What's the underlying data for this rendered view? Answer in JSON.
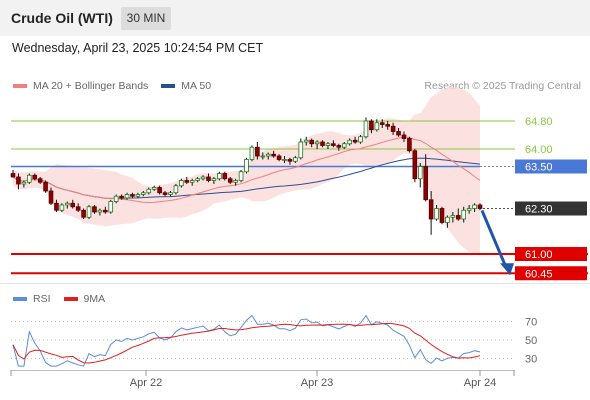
{
  "header": {
    "title": "Crude Oil (WTI)",
    "timeframe": "30 MIN",
    "timestamp": "Wednesday, April 23, 2025 10:24:54 PM CET"
  },
  "legend": {
    "ma20_label": "MA 20 + Bollinger Bands",
    "ma20_color": "#f08080",
    "ma50_label": "MA 50",
    "ma50_color": "#2a4f8f",
    "credit": "Research © 2025 Trading Central"
  },
  "rsi_legend": {
    "rsi_label": "RSI",
    "rsi_color": "#5b8dd9",
    "ma9_label": "9MA",
    "ma9_color": "#e02020"
  },
  "chart_data": [
    {
      "type": "candlestick",
      "title": "",
      "ylim": [
        60.2,
        65.4
      ],
      "x_tick_labels": [
        "Apr 22",
        "Apr 23",
        "Apr 24"
      ],
      "levels": [
        {
          "value": 64.8,
          "label": "64.80",
          "color": "#8cc63f",
          "style": "line"
        },
        {
          "value": 64.0,
          "label": "64.00",
          "color": "#8cc63f",
          "style": "line"
        },
        {
          "value": 63.5,
          "label": "63.50",
          "color": "#4a78d6",
          "style": "tag"
        },
        {
          "value": 62.3,
          "label": "62.30",
          "color": "#333333",
          "style": "tag"
        },
        {
          "value": 61.0,
          "label": "61.00",
          "color": "#e00000",
          "style": "tag"
        },
        {
          "value": 60.45,
          "label": "60.45",
          "color": "#e00000",
          "style": "tag"
        }
      ],
      "candles": [
        [
          63.3,
          63.4,
          63.2,
          63.2
        ],
        [
          63.2,
          63.3,
          62.85,
          63.0
        ],
        [
          63.0,
          63.1,
          62.9,
          63.05
        ],
        [
          63.05,
          63.3,
          63.0,
          63.25
        ],
        [
          63.25,
          63.3,
          63.1,
          63.15
        ],
        [
          63.15,
          63.2,
          63.0,
          63.05
        ],
        [
          63.05,
          63.1,
          62.75,
          62.8
        ],
        [
          62.8,
          62.9,
          62.4,
          62.45
        ],
        [
          62.45,
          62.55,
          62.2,
          62.25
        ],
        [
          62.25,
          62.45,
          62.2,
          62.4
        ],
        [
          62.4,
          62.5,
          62.3,
          62.45
        ],
        [
          62.45,
          62.55,
          62.3,
          62.35
        ],
        [
          62.35,
          62.45,
          62.2,
          62.25
        ],
        [
          62.25,
          62.3,
          62.0,
          62.05
        ],
        [
          62.05,
          62.4,
          62.0,
          62.35
        ],
        [
          62.35,
          62.4,
          62.15,
          62.2
        ],
        [
          62.2,
          62.3,
          62.1,
          62.25
        ],
        [
          62.25,
          62.35,
          62.15,
          62.2
        ],
        [
          62.2,
          62.55,
          62.15,
          62.5
        ],
        [
          62.5,
          62.7,
          62.45,
          62.65
        ],
        [
          62.65,
          62.7,
          62.55,
          62.6
        ],
        [
          62.6,
          62.75,
          62.55,
          62.7
        ],
        [
          62.7,
          62.75,
          62.6,
          62.65
        ],
        [
          62.65,
          62.75,
          62.6,
          62.7
        ],
        [
          62.7,
          62.8,
          62.65,
          62.75
        ],
        [
          62.75,
          62.9,
          62.7,
          62.85
        ],
        [
          62.85,
          62.95,
          62.8,
          62.9
        ],
        [
          62.9,
          62.95,
          62.7,
          62.75
        ],
        [
          62.75,
          62.8,
          62.65,
          62.7
        ],
        [
          62.7,
          62.8,
          62.65,
          62.75
        ],
        [
          62.75,
          63.0,
          62.7,
          62.95
        ],
        [
          62.95,
          63.15,
          62.9,
          63.1
        ],
        [
          63.1,
          63.2,
          63.0,
          63.05
        ],
        [
          63.05,
          63.15,
          62.95,
          63.1
        ],
        [
          63.1,
          63.2,
          63.05,
          63.15
        ],
        [
          63.15,
          63.25,
          63.1,
          63.2
        ],
        [
          63.2,
          63.3,
          63.05,
          63.1
        ],
        [
          63.1,
          63.2,
          63.0,
          63.15
        ],
        [
          63.15,
          63.35,
          63.1,
          63.3
        ],
        [
          63.3,
          63.35,
          63.1,
          63.15
        ],
        [
          63.15,
          63.2,
          63.0,
          63.05
        ],
        [
          63.05,
          63.15,
          62.95,
          63.1
        ],
        [
          63.1,
          63.4,
          63.05,
          63.35
        ],
        [
          63.35,
          63.75,
          63.3,
          63.7
        ],
        [
          63.7,
          64.1,
          63.65,
          64.05
        ],
        [
          64.05,
          64.2,
          63.7,
          63.8
        ],
        [
          63.8,
          63.9,
          63.7,
          63.8
        ],
        [
          63.8,
          63.9,
          63.7,
          63.85
        ],
        [
          63.85,
          63.95,
          63.75,
          63.8
        ],
        [
          63.8,
          63.85,
          63.65,
          63.7
        ],
        [
          63.7,
          63.8,
          63.6,
          63.7
        ],
        [
          63.7,
          63.75,
          63.55,
          63.65
        ],
        [
          63.65,
          63.8,
          63.6,
          63.75
        ],
        [
          63.75,
          64.3,
          63.7,
          64.2
        ],
        [
          64.2,
          64.35,
          64.1,
          64.25
        ],
        [
          64.25,
          64.3,
          64.05,
          64.15
        ],
        [
          64.15,
          64.25,
          64.0,
          64.2
        ],
        [
          64.2,
          64.25,
          64.05,
          64.1
        ],
        [
          64.1,
          64.2,
          64.0,
          64.15
        ],
        [
          64.15,
          64.25,
          64.05,
          64.1
        ],
        [
          64.1,
          64.15,
          63.95,
          64.05
        ],
        [
          64.05,
          64.2,
          64.0,
          64.15
        ],
        [
          64.15,
          64.3,
          64.1,
          64.25
        ],
        [
          64.25,
          64.35,
          64.15,
          64.2
        ],
        [
          64.2,
          64.4,
          64.15,
          64.35
        ],
        [
          64.35,
          64.9,
          64.3,
          64.8
        ],
        [
          64.8,
          64.85,
          64.45,
          64.55
        ],
        [
          64.55,
          64.85,
          64.5,
          64.75
        ],
        [
          64.75,
          64.85,
          64.6,
          64.7
        ],
        [
          64.7,
          64.8,
          64.55,
          64.65
        ],
        [
          64.65,
          64.75,
          64.4,
          64.5
        ],
        [
          64.5,
          64.6,
          64.35,
          64.4
        ],
        [
          64.4,
          64.5,
          64.2,
          64.3
        ],
        [
          64.3,
          64.35,
          63.9,
          63.95
        ],
        [
          63.95,
          64.0,
          63.05,
          63.15
        ],
        [
          63.15,
          63.6,
          62.9,
          63.5
        ],
        [
          63.5,
          63.85,
          62.5,
          62.55
        ],
        [
          62.55,
          62.8,
          61.55,
          62.0
        ],
        [
          62.0,
          62.4,
          61.95,
          62.3
        ],
        [
          62.3,
          62.35,
          61.85,
          61.9
        ],
        [
          61.9,
          62.1,
          61.75,
          62.05
        ],
        [
          62.05,
          62.2,
          61.9,
          62.1
        ],
        [
          62.1,
          62.3,
          61.95,
          62.0
        ],
        [
          62.0,
          62.35,
          61.9,
          62.25
        ],
        [
          62.25,
          62.4,
          62.15,
          62.3
        ],
        [
          62.3,
          62.45,
          62.2,
          62.4
        ],
        [
          62.4,
          62.45,
          62.25,
          62.3
        ]
      ]
    },
    {
      "type": "line",
      "title": "RSI",
      "ylim": [
        20,
        80
      ],
      "y_ticks": [
        "70",
        "50",
        "30"
      ],
      "series": [
        {
          "name": "RSI",
          "color": "#5b8dd9"
        },
        {
          "name": "9MA",
          "color": "#e02020"
        }
      ]
    }
  ]
}
